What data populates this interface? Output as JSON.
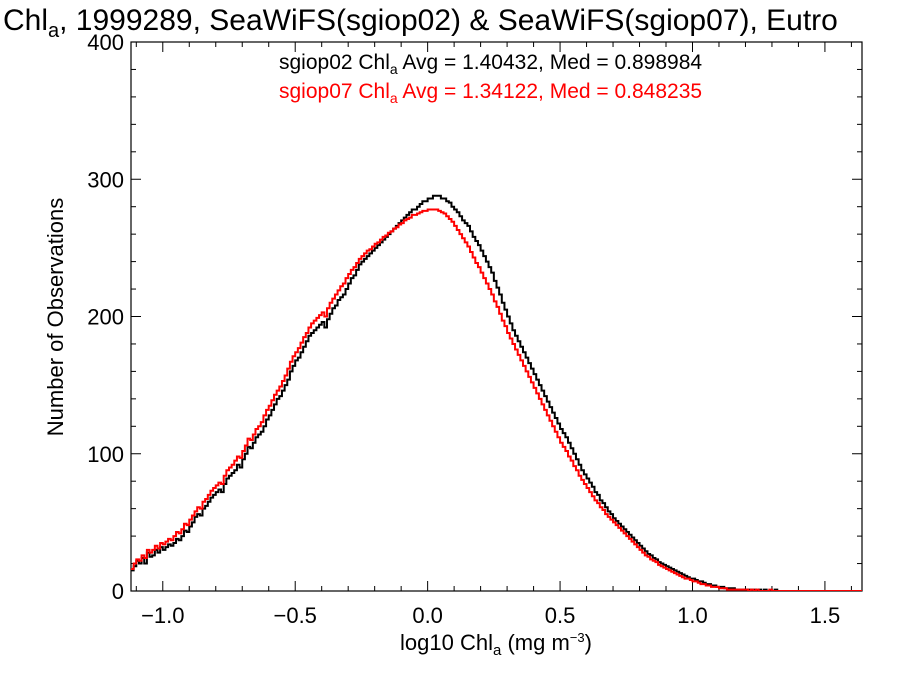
{
  "chart_data": {
    "type": "histogram-step",
    "title": {
      "pre": "Chl",
      "sub": "a",
      "post": ", 1999289, SeaWiFS(sgiop02) & SeaWiFS(sgiop07), Eutro"
    },
    "xlabel": {
      "pre": "log10 Chl",
      "sub": "a",
      "post": " (mg m",
      "sup": "−3",
      "end": ")"
    },
    "ylabel": "Number of Observations",
    "xlim": [
      -1.12,
      1.64
    ],
    "ylim": [
      0,
      400
    ],
    "xticks": [
      -1.0,
      -0.5,
      0.0,
      0.5,
      1.0,
      1.5
    ],
    "xtick_labels": [
      "−1.0",
      "−0.5",
      "0.0",
      "0.5",
      "1.0",
      "1.5"
    ],
    "yticks": [
      0,
      100,
      200,
      300,
      400
    ],
    "ytick_labels": [
      "0",
      "100",
      "200",
      "300",
      "400"
    ],
    "legend": [
      {
        "pre": "sgiop02 Chl",
        "sub": "a",
        "post": " Avg = 1.40432, Med = 0.898984",
        "color": "#000000"
      },
      {
        "pre": "sgiop07 Chl",
        "sub": "a",
        "post": " Avg = 1.34122, Med = 0.848235",
        "color": "#ff0000"
      }
    ],
    "legend_placement": "top-center",
    "bin_width": 0.01,
    "series": [
      {
        "name": "sgiop02",
        "color": "#000000",
        "x_start": -1.12,
        "values": [
          15,
          18,
          22,
          20,
          24,
          20,
          28,
          25,
          26,
          30,
          28,
          32,
          30,
          32,
          34,
          33,
          35,
          38,
          37,
          40,
          44,
          43,
          47,
          50,
          54,
          56,
          55,
          60,
          62,
          65,
          68,
          70,
          72,
          74,
          72,
          78,
          82,
          84,
          86,
          88,
          92,
          90,
          96,
          100,
          105,
          104,
          108,
          112,
          114,
          116,
          120,
          125,
          128,
          132,
          136,
          140,
          142,
          146,
          150,
          154,
          160,
          164,
          168,
          170,
          174,
          178,
          182,
          186,
          188,
          190,
          192,
          194,
          196,
          192,
          198,
          202,
          206,
          208,
          212,
          214,
          216,
          220,
          224,
          228,
          230,
          234,
          238,
          240,
          242,
          244,
          246,
          248,
          250,
          252,
          254,
          256,
          258,
          260,
          262,
          264,
          266,
          268,
          270,
          272,
          274,
          276,
          278,
          278,
          280,
          282,
          284,
          284,
          286,
          286,
          288,
          288,
          288,
          286,
          286,
          284,
          283,
          280,
          278,
          276,
          273,
          270,
          268,
          266,
          262,
          258,
          255,
          252,
          248,
          244,
          240,
          236,
          232,
          226,
          221,
          216,
          210,
          205,
          200,
          195,
          190,
          186,
          182,
          178,
          174,
          170,
          166,
          162,
          158,
          154,
          150,
          146,
          142,
          138,
          134,
          130,
          126,
          122,
          118,
          115,
          112,
          108,
          104,
          100,
          96,
          92,
          88,
          85,
          82,
          79,
          76,
          72,
          70,
          66,
          64,
          61,
          58,
          56,
          53,
          51,
          49,
          47,
          45,
          43,
          41,
          39,
          37,
          35,
          33,
          31,
          29,
          27,
          26,
          24,
          23,
          21,
          20,
          19,
          18,
          17,
          16,
          15,
          14,
          13,
          12,
          11,
          10,
          9,
          9,
          8,
          7,
          7,
          6,
          5,
          5,
          4,
          4,
          3,
          3,
          3,
          2,
          2,
          2,
          2,
          1,
          1,
          1,
          1,
          1,
          1,
          1,
          1,
          0,
          1,
          0,
          1,
          0,
          0,
          0,
          1,
          0,
          0,
          0,
          0,
          0,
          0,
          0,
          0,
          0,
          0,
          0,
          0,
          0,
          0,
          0,
          0,
          0,
          0,
          0,
          0,
          0,
          0,
          0,
          0,
          0,
          0,
          0,
          0,
          0,
          0,
          0,
          0,
          0,
          0,
          0,
          0,
          0,
          0,
          0,
          0,
          0
        ]
      },
      {
        "name": "sgiop07",
        "color": "#ff0000",
        "x_start": -1.12,
        "values": [
          16,
          20,
          23,
          22,
          26,
          24,
          30,
          28,
          30,
          33,
          31,
          35,
          34,
          36,
          38,
          37,
          40,
          43,
          42,
          45,
          49,
          48,
          52,
          55,
          58,
          61,
          60,
          65,
          67,
          70,
          73,
          75,
          77,
          79,
          78,
          84,
          88,
          90,
          92,
          95,
          98,
          97,
          102,
          106,
          111,
          110,
          114,
          118,
          120,
          123,
          128,
          132,
          135,
          139,
          143,
          146,
          149,
          153,
          157,
          162,
          167,
          171,
          174,
          177,
          181,
          185,
          188,
          192,
          195,
          197,
          199,
          201,
          203,
          200,
          206,
          210,
          213,
          216,
          219,
          222,
          224,
          228,
          231,
          234,
          236,
          239,
          242,
          244,
          246,
          248,
          249,
          251,
          253,
          254,
          256,
          258,
          259,
          261,
          262,
          264,
          265,
          267,
          268,
          270,
          271,
          272,
          274,
          274,
          275,
          276,
          277,
          277,
          278,
          278,
          278,
          278,
          277,
          276,
          275,
          273,
          271,
          269,
          266,
          263,
          260,
          257,
          254,
          251,
          247,
          243,
          239,
          236,
          232,
          228,
          224,
          220,
          216,
          211,
          207,
          202,
          197,
          193,
          188,
          184,
          180,
          176,
          172,
          168,
          164,
          160,
          156,
          152,
          148,
          144,
          140,
          136,
          132,
          128,
          124,
          120,
          116,
          112,
          108,
          105,
          102,
          98,
          95,
          91,
          88,
          84,
          81,
          78,
          75,
          72,
          69,
          66,
          64,
          61,
          59,
          56,
          54,
          52,
          50,
          48,
          46,
          44,
          42,
          40,
          38,
          36,
          34,
          32,
          30,
          28,
          26,
          25,
          23,
          22,
          21,
          19,
          18,
          17,
          16,
          15,
          14,
          13,
          12,
          11,
          10,
          9,
          9,
          8,
          7,
          7,
          6,
          5,
          5,
          4,
          4,
          3,
          3,
          3,
          2,
          2,
          2,
          1,
          1,
          1,
          1,
          1,
          1,
          1,
          1,
          0,
          1,
          0,
          1,
          0,
          0,
          0,
          0,
          1,
          0,
          0,
          0,
          0,
          0,
          0,
          0,
          0,
          0,
          0,
          0,
          0,
          0,
          0,
          0,
          0,
          0,
          0,
          0,
          0,
          0,
          0,
          0,
          0,
          0,
          0,
          0,
          0,
          0,
          0,
          0,
          0,
          0,
          0,
          0,
          0,
          0,
          0,
          0,
          0,
          0,
          0,
          0,
          0,
          0
        ]
      }
    ]
  }
}
